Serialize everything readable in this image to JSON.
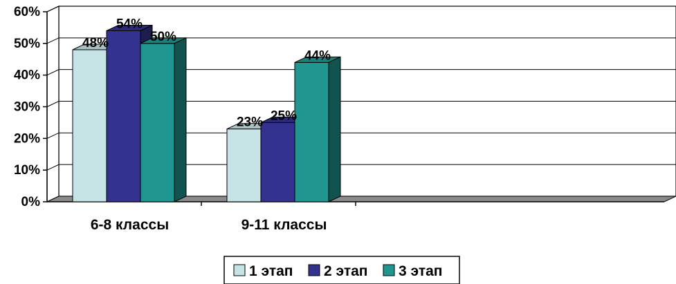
{
  "chart_data": {
    "type": "bar",
    "categories": [
      "6-8 классы",
      "9-11 классы"
    ],
    "series": [
      {
        "name": "1 этап",
        "values": [
          48,
          23
        ],
        "color": "#c6e3e6"
      },
      {
        "name": "2 этап",
        "values": [
          54,
          25
        ],
        "color": "#33338f"
      },
      {
        "name": "3 этап",
        "values": [
          50,
          44
        ],
        "color": "#1f9690"
      }
    ],
    "data_labels": [
      [
        "48%",
        "23%"
      ],
      [
        "54%",
        "25%"
      ],
      [
        "50%",
        "44%"
      ]
    ],
    "yticks": [
      "0%",
      "10%",
      "20%",
      "30%",
      "40%",
      "50%",
      "60%"
    ],
    "ylim": [
      0,
      60
    ],
    "grid": true,
    "legend": "bottom",
    "title": "",
    "xlabel": "",
    "ylabel": ""
  }
}
